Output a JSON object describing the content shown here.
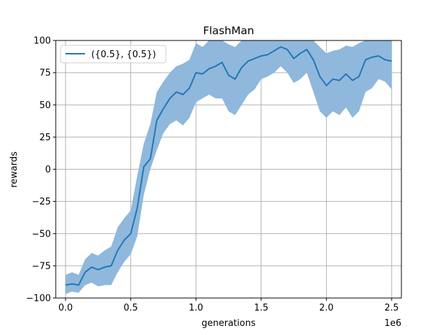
{
  "chart_data": {
    "type": "line",
    "title": "FlashMan",
    "xlabel": "generations",
    "ylabel": "rewards",
    "x_offset_text": "1e6",
    "xlim": [
      -0.075,
      2.575
    ],
    "ylim": [
      -100,
      100
    ],
    "xticks": [
      0.0,
      0.5,
      1.0,
      1.5,
      2.0,
      2.5
    ],
    "xtick_labels": [
      "0.0",
      "0.5",
      "1.0",
      "1.5",
      "2.0",
      "2.5"
    ],
    "yticks": [
      -100,
      -75,
      -50,
      -25,
      0,
      25,
      50,
      75,
      100
    ],
    "ytick_labels": [
      "−100",
      "−75",
      "−50",
      "−25",
      "0",
      "25",
      "50",
      "75",
      "100"
    ],
    "grid": true,
    "legend_position": "upper-left",
    "colors": {
      "line": "#1f77b4",
      "band": "#8fb8dc",
      "grid": "#b0b0b0"
    },
    "series": [
      {
        "name": "({0.5}, {0.5})",
        "x": [
          0.0,
          0.05,
          0.1,
          0.15,
          0.2,
          0.25,
          0.3,
          0.35,
          0.4,
          0.45,
          0.5,
          0.55,
          0.6,
          0.65,
          0.7,
          0.75,
          0.8,
          0.85,
          0.9,
          0.95,
          1.0,
          1.05,
          1.1,
          1.15,
          1.2,
          1.25,
          1.3,
          1.35,
          1.4,
          1.45,
          1.5,
          1.55,
          1.6,
          1.65,
          1.7,
          1.75,
          1.8,
          1.85,
          1.9,
          1.95,
          2.0,
          2.05,
          2.1,
          2.15,
          2.2,
          2.25,
          2.3,
          2.35,
          2.4,
          2.45,
          2.5
        ],
        "y": [
          -90,
          -89,
          -90,
          -80,
          -76,
          -78,
          -76,
          -75,
          -63,
          -55,
          -50,
          -30,
          2,
          8,
          38,
          47,
          55,
          60,
          58,
          63,
          75,
          74,
          78,
          80,
          83,
          73,
          70,
          79,
          84,
          86,
          88,
          89,
          92,
          95,
          93,
          86,
          90,
          93,
          85,
          72,
          65,
          70,
          69,
          74,
          69,
          72,
          85,
          87,
          88,
          85,
          84
        ],
        "lower": [
          -97,
          -95,
          -96,
          -90,
          -88,
          -91,
          -90,
          -90,
          -80,
          -72,
          -66,
          -52,
          -20,
          0,
          15,
          28,
          35,
          38,
          34,
          40,
          52,
          55,
          58,
          55,
          55,
          45,
          42,
          50,
          58,
          62,
          70,
          72,
          75,
          80,
          75,
          67,
          70,
          75,
          60,
          45,
          40,
          45,
          42,
          48,
          40,
          45,
          60,
          63,
          70,
          68,
          62
        ],
        "upper": [
          -82,
          -80,
          -82,
          -70,
          -65,
          -67,
          -63,
          -60,
          -45,
          -38,
          -32,
          -5,
          20,
          35,
          60,
          68,
          75,
          80,
          82,
          85,
          98,
          95,
          100,
          100,
          100,
          97,
          95,
          100,
          100,
          100,
          100,
          100,
          100,
          100,
          100,
          100,
          100,
          100,
          100,
          95,
          90,
          92,
          93,
          96,
          95,
          98,
          100,
          100,
          100,
          100,
          100
        ]
      }
    ]
  }
}
